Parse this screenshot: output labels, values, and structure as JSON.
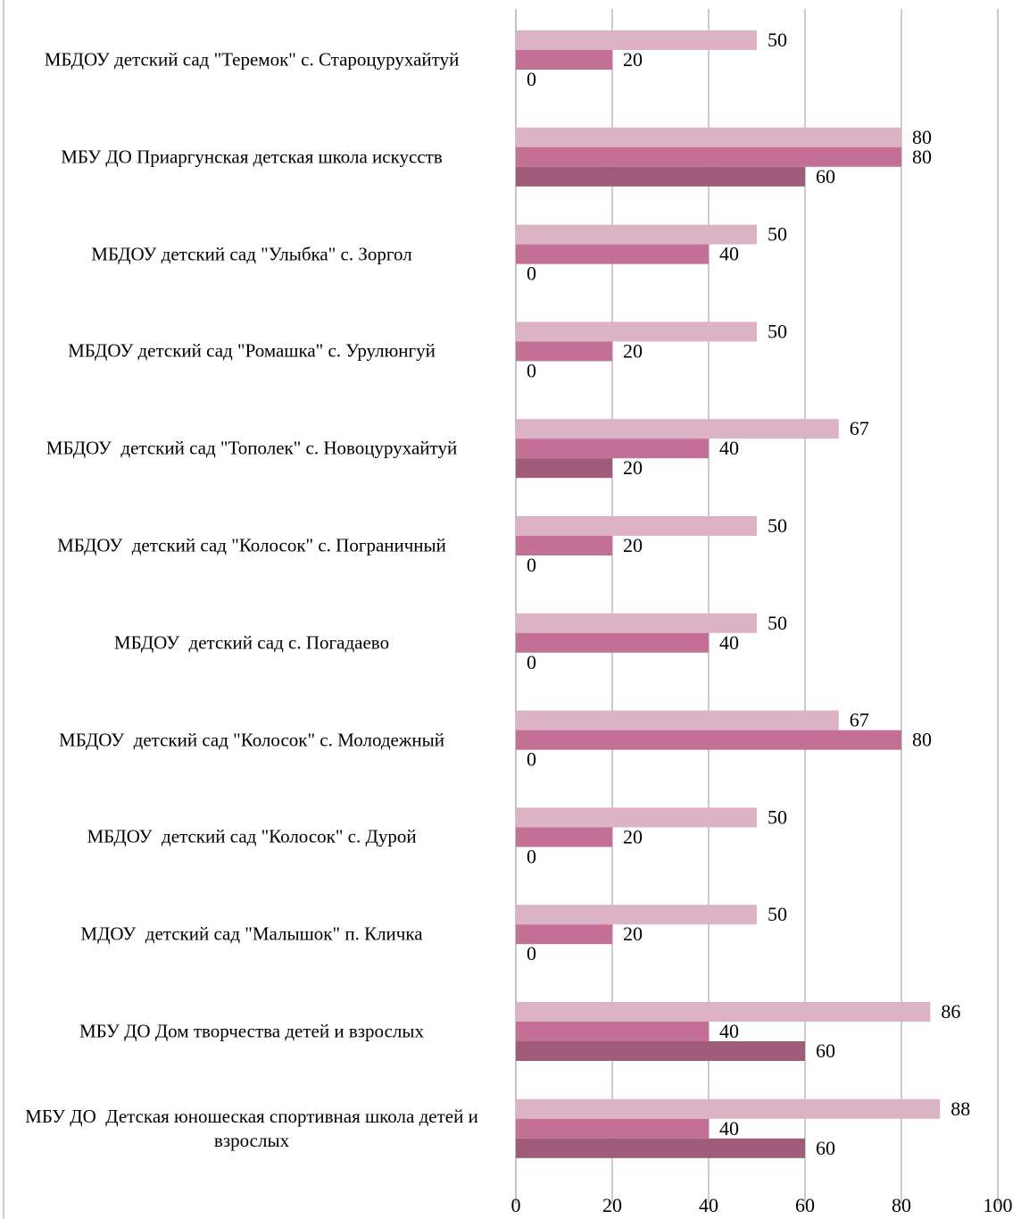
{
  "chart_data": {
    "type": "hbar",
    "categories": [
      "МБДОУ детский сад \"Теремок\" с. Староцурухайтуй",
      "МБУ ДО Приаргунская детская школа искусств",
      "МБДОУ детский сад \"Улыбка\" с. Зоргол",
      "МБДОУ детский сад \"Ромашка\" с. Урулюнгуй",
      "МБДОУ  детский сад \"Тополек\" с. Новоцурухайтуй",
      "МБДОУ  детский сад \"Колосок\" с. Пограничный",
      "МБДОУ  детский сад с. Погадаево",
      "МБДОУ  детский сад \"Колосок\" с. Молодежный",
      "МБДОУ  детский сад \"Колосок\" с. Дурой",
      "МДОУ  детский сад \"Малышок\" п. Кличка",
      "МБУ ДО Дом творчества детей и взрослых",
      "МБУ ДО  Детская юношеская спортивная школа детей и взрослых"
    ],
    "series": [
      {
        "color": "#dbb3c4",
        "values": [
          50,
          80,
          50,
          50,
          67,
          50,
          50,
          67,
          50,
          50,
          86,
          88
        ]
      },
      {
        "color": "#c47096",
        "values": [
          20,
          80,
          40,
          20,
          40,
          20,
          40,
          80,
          20,
          20,
          40,
          40
        ]
      },
      {
        "color": "#a05a7a",
        "values": [
          0,
          60,
          0,
          0,
          20,
          0,
          0,
          0,
          0,
          0,
          60,
          60
        ]
      }
    ],
    "xlim": [
      0,
      100
    ],
    "xticks": [
      0,
      20,
      40,
      60,
      80,
      100
    ],
    "grid": true
  }
}
